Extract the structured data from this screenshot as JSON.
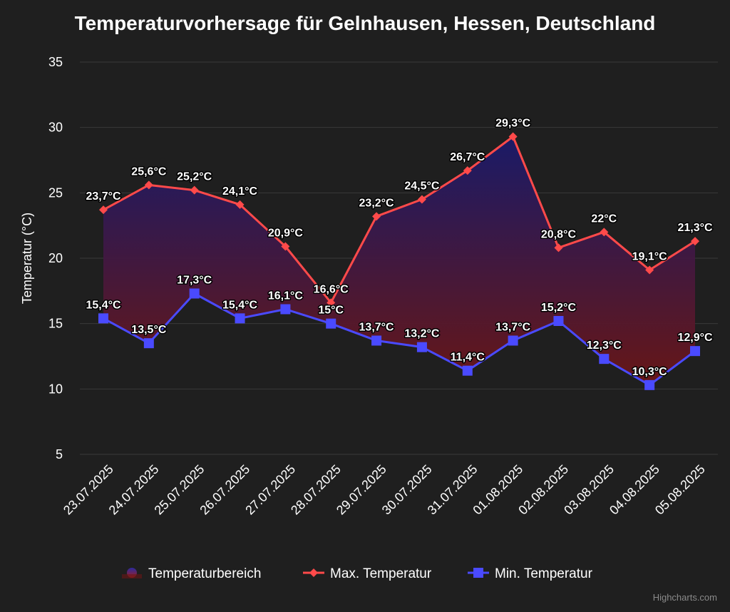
{
  "chart_data": {
    "type": "line",
    "title": "Temperaturvorhersage für Gelnhausen, Hessen, Deutschland",
    "ylabel": "Temperatur (°C)",
    "ylim": [
      5,
      35
    ],
    "yticks": [
      5,
      10,
      15,
      20,
      25,
      30,
      35
    ],
    "grid": true,
    "legend_position": "bottom",
    "categories": [
      "23.07.2025",
      "24.07.2025",
      "25.07.2025",
      "26.07.2025",
      "27.07.2025",
      "28.07.2025",
      "29.07.2025",
      "30.07.2025",
      "31.07.2025",
      "01.08.2025",
      "02.08.2025",
      "03.08.2025",
      "04.08.2025",
      "05.08.2025"
    ],
    "range_area": {
      "name": "Temperaturbereich",
      "color_top": "#1a1a6b",
      "color_bottom": "#6b1616"
    },
    "series": [
      {
        "name": "Max. Temperatur",
        "color": "#ff4a4a",
        "marker": "diamond",
        "values": [
          23.7,
          25.6,
          25.2,
          24.1,
          20.9,
          16.6,
          23.2,
          24.5,
          26.7,
          29.3,
          20.8,
          22,
          19.1,
          21.3
        ],
        "labels": [
          "23,7°C",
          "25,6°C",
          "25,2°C",
          "24,1°C",
          "20,9°C",
          "16,6°C",
          "23,2°C",
          "24,5°C",
          "26,7°C",
          "29,3°C",
          "20,8°C",
          "22°C",
          "19,1°C",
          "21,3°C"
        ]
      },
      {
        "name": "Min. Temperatur",
        "color": "#4a4aff",
        "marker": "square",
        "values": [
          15.4,
          13.5,
          17.3,
          15.4,
          16.1,
          15,
          13.7,
          13.2,
          11.4,
          13.7,
          15.2,
          12.3,
          10.3,
          12.9
        ],
        "labels": [
          "15,4°C",
          "13,5°C",
          "17,3°C",
          "15,4°C",
          "16,1°C",
          "15°C",
          "13,7°C",
          "13,2°C",
          "11,4°C",
          "13,7°C",
          "15,2°C",
          "12,3°C",
          "10,3°C",
          "12,9°C"
        ]
      }
    ]
  },
  "credit": "Highcharts.com"
}
